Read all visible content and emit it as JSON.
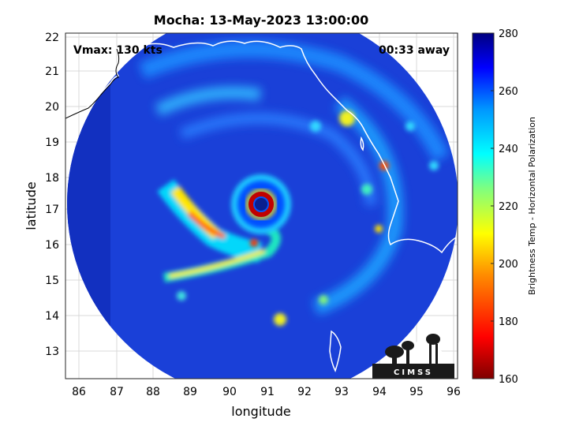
{
  "title": "Mocha: 13-May-2023 13:00:00",
  "overlay": {
    "vmax": "Vmax: 130 kts",
    "away": "00:33 away"
  },
  "axes": {
    "xlabel": "longitude",
    "ylabel": "latitude",
    "xticks": [
      "86",
      "87",
      "88",
      "89",
      "90",
      "91",
      "92",
      "93",
      "94",
      "95",
      "96"
    ],
    "yticks": [
      "13",
      "14",
      "15",
      "16",
      "17",
      "18",
      "19",
      "20",
      "21",
      "22"
    ]
  },
  "colorbar": {
    "label": "Brightness Temp - Horizontal Polarization",
    "ticks": [
      "160",
      "180",
      "200",
      "220",
      "240",
      "260",
      "280"
    ],
    "range": [
      160,
      280
    ]
  },
  "logo": {
    "text": "CIMSS"
  },
  "colors": {
    "background_swath": "#1a3fd6",
    "eye": "#0a1f8f",
    "eyewall": "#b00000"
  }
}
